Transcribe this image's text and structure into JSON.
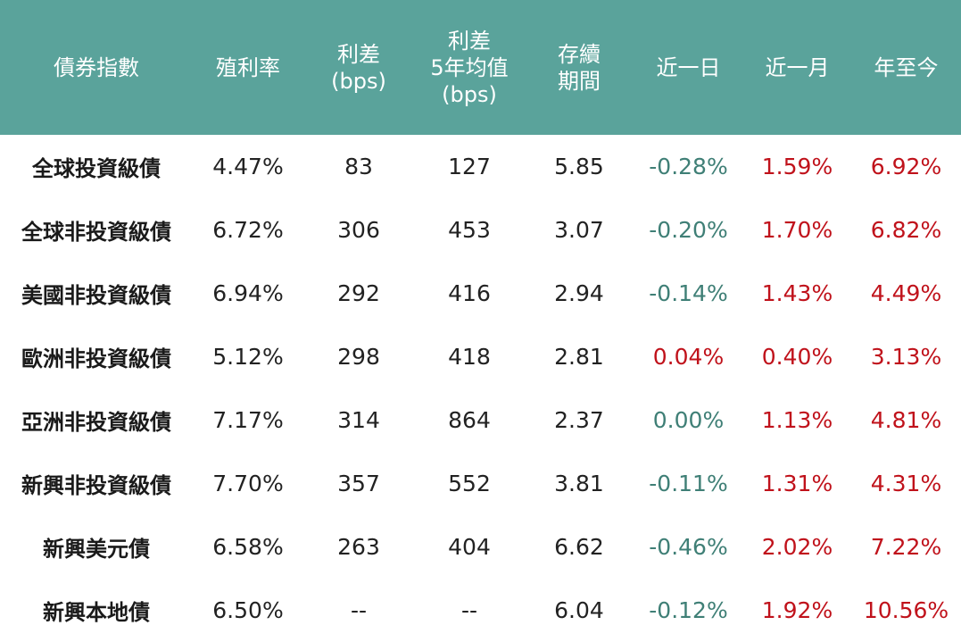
{
  "headers": [
    {
      "lines": [
        "債券指數"
      ]
    },
    {
      "lines": [
        "殖利率"
      ]
    },
    {
      "lines": [
        "利差",
        "(bps)"
      ]
    },
    {
      "lines": [
        "利差",
        "5年均值",
        "(bps)"
      ]
    },
    {
      "lines": [
        "存續",
        "期間"
      ]
    },
    {
      "lines": [
        "近一日"
      ]
    },
    {
      "lines": [
        "近一月"
      ]
    },
    {
      "lines": [
        "年至今"
      ]
    }
  ],
  "rows": [
    {
      "name": "全球投資級債",
      "yield": "4.47%",
      "spread": "83",
      "spread_5y": "127",
      "duration": "5.85",
      "d1": "-0.28%",
      "m1": "1.59%",
      "ytd": "6.92%"
    },
    {
      "name": "全球非投資級債",
      "yield": "6.72%",
      "spread": "306",
      "spread_5y": "453",
      "duration": "3.07",
      "d1": "-0.20%",
      "m1": "1.70%",
      "ytd": "6.82%"
    },
    {
      "name": "美國非投資級債",
      "yield": "6.94%",
      "spread": "292",
      "spread_5y": "416",
      "duration": "2.94",
      "d1": "-0.14%",
      "m1": "1.43%",
      "ytd": "4.49%"
    },
    {
      "name": "歐洲非投資級債",
      "yield": "5.12%",
      "spread": "298",
      "spread_5y": "418",
      "duration": "2.81",
      "d1": "0.04%",
      "m1": "0.40%",
      "ytd": "3.13%"
    },
    {
      "name": "亞洲非投資級債",
      "yield": "7.17%",
      "spread": "314",
      "spread_5y": "864",
      "duration": "2.37",
      "d1": "0.00%",
      "m1": "1.13%",
      "ytd": "4.81%"
    },
    {
      "name": "新興非投資級債",
      "yield": "7.70%",
      "spread": "357",
      "spread_5y": "552",
      "duration": "3.81",
      "d1": "-0.11%",
      "m1": "1.31%",
      "ytd": "4.31%"
    },
    {
      "name": "新興美元債",
      "yield": "6.58%",
      "spread": "263",
      "spread_5y": "404",
      "duration": "6.62",
      "d1": "-0.46%",
      "m1": "2.02%",
      "ytd": "7.22%"
    },
    {
      "name": "新興本地債",
      "yield": "6.50%",
      "spread": "--",
      "spread_5y": "--",
      "duration": "6.04",
      "d1": "-0.12%",
      "m1": "1.92%",
      "ytd": "10.56%"
    }
  ],
  "colors": {
    "header_bg": "#5aa39b",
    "header_text": "#ffffff",
    "positive": "#c0121b",
    "non_positive": "#3f7f76"
  }
}
